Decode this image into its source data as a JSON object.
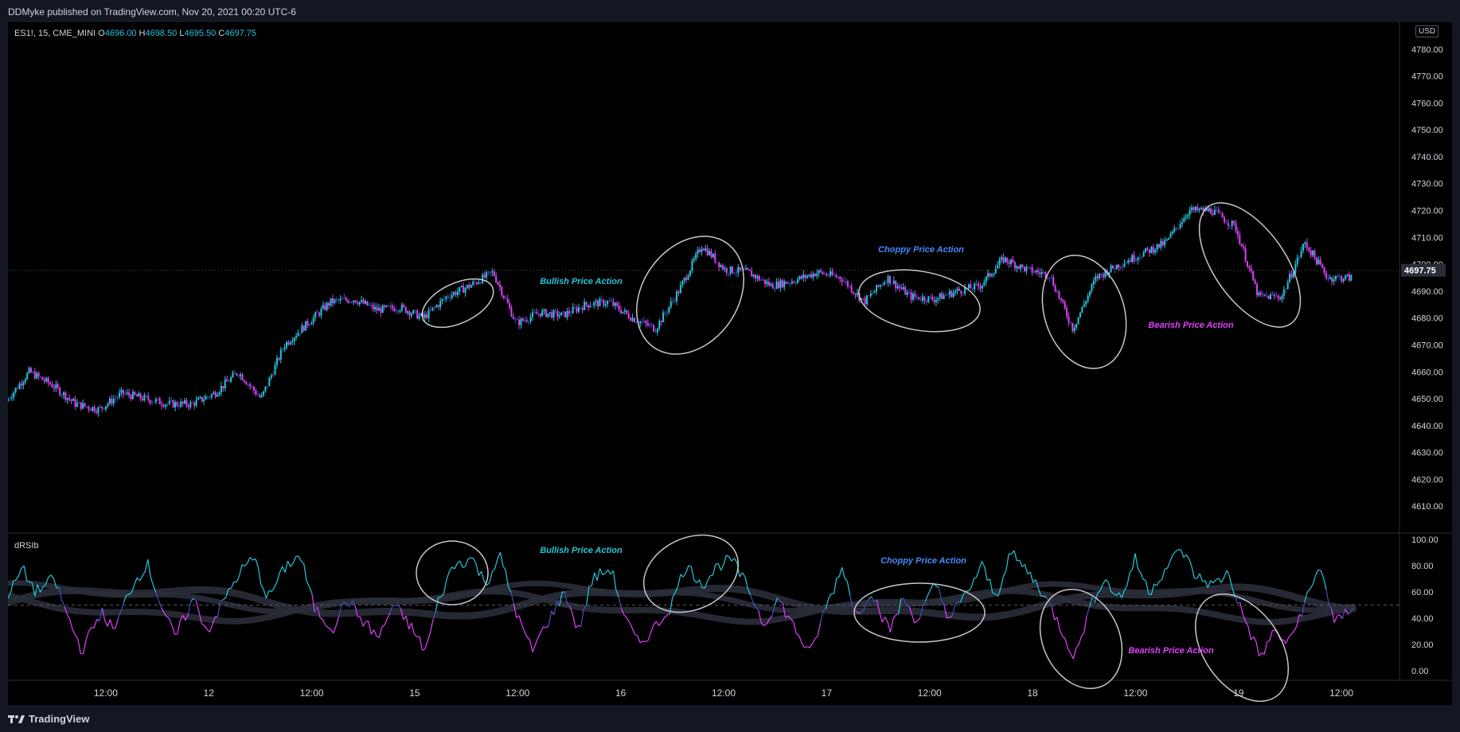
{
  "header": {
    "published_by": "DDMyke published on TradingView.com, Nov 20, 2021 00:20 UTC-6"
  },
  "legend": {
    "symbol": "ES1!, 15, CME_MINI",
    "open_label": "O",
    "open": "4696.00",
    "high_label": "H",
    "high": "4698.50",
    "low_label": "L",
    "low": "4695.50",
    "close_label": "C",
    "close": "4697.75"
  },
  "currency_badge": "USD",
  "footer": {
    "brand": "TradingView"
  },
  "colors": {
    "bull": "#26c6da",
    "bear": "#e040fb",
    "neutral": "#3f51b5",
    "band": "#2a2e39",
    "ellipse": "#c8c8c8"
  },
  "chart_data": [
    {
      "type": "candlestick",
      "pane": "price",
      "ylim": [
        4600,
        4790
      ],
      "y_ticks": [
        "4610.00",
        "4620.00",
        "4630.00",
        "4640.00",
        "4650.00",
        "4660.00",
        "4670.00",
        "4680.00",
        "4690.00",
        "4700.00",
        "4710.00",
        "4720.00",
        "4730.00",
        "4740.00",
        "4750.00",
        "4760.00",
        "4770.00",
        "4780.00"
      ],
      "last_price": "4697.75",
      "x_ticks": [
        "12:00",
        "12",
        "12:00",
        "15",
        "12:00",
        "16",
        "12:00",
        "17",
        "12:00",
        "18",
        "12:00",
        "19",
        "12:00"
      ],
      "price_path": [
        {
          "t": 0.0,
          "p": 4649
        },
        {
          "t": 0.5,
          "p": 4660
        },
        {
          "t": 1.0,
          "p": 4655
        },
        {
          "t": 1.5,
          "p": 4648
        },
        {
          "t": 2.0,
          "p": 4646
        },
        {
          "t": 2.5,
          "p": 4652
        },
        {
          "t": 3.0,
          "p": 4650
        },
        {
          "t": 3.5,
          "p": 4648
        },
        {
          "t": 4.0,
          "p": 4648
        },
        {
          "t": 4.5,
          "p": 4652
        },
        {
          "t": 5.0,
          "p": 4660
        },
        {
          "t": 5.5,
          "p": 4650
        },
        {
          "t": 6.0,
          "p": 4670
        },
        {
          "t": 6.5,
          "p": 4678
        },
        {
          "t": 7.0,
          "p": 4686
        },
        {
          "t": 7.5,
          "p": 4687
        },
        {
          "t": 8.0,
          "p": 4683
        },
        {
          "t": 8.5,
          "p": 4684
        },
        {
          "t": 9.0,
          "p": 4680
        },
        {
          "t": 9.5,
          "p": 4688
        },
        {
          "t": 10.0,
          "p": 4692
        },
        {
          "t": 10.5,
          "p": 4697
        },
        {
          "t": 11.0,
          "p": 4678
        },
        {
          "t": 11.5,
          "p": 4682
        },
        {
          "t": 12.0,
          "p": 4681
        },
        {
          "t": 12.5,
          "p": 4685
        },
        {
          "t": 13.0,
          "p": 4686
        },
        {
          "t": 13.5,
          "p": 4680
        },
        {
          "t": 14.0,
          "p": 4676
        },
        {
          "t": 14.5,
          "p": 4690
        },
        {
          "t": 15.0,
          "p": 4707
        },
        {
          "t": 15.5,
          "p": 4698
        },
        {
          "t": 16.0,
          "p": 4697
        },
        {
          "t": 16.5,
          "p": 4692
        },
        {
          "t": 17.0,
          "p": 4694
        },
        {
          "t": 17.5,
          "p": 4697
        },
        {
          "t": 18.0,
          "p": 4695
        },
        {
          "t": 18.5,
          "p": 4686
        },
        {
          "t": 19.0,
          "p": 4695
        },
        {
          "t": 19.5,
          "p": 4688
        },
        {
          "t": 20.0,
          "p": 4687
        },
        {
          "t": 20.5,
          "p": 4690
        },
        {
          "t": 21.0,
          "p": 4692
        },
        {
          "t": 21.5,
          "p": 4702
        },
        {
          "t": 22.0,
          "p": 4698
        },
        {
          "t": 22.5,
          "p": 4696
        },
        {
          "t": 23.0,
          "p": 4676
        },
        {
          "t": 23.5,
          "p": 4695
        },
        {
          "t": 24.0,
          "p": 4700
        },
        {
          "t": 24.5,
          "p": 4704
        },
        {
          "t": 25.0,
          "p": 4708
        },
        {
          "t": 25.5,
          "p": 4720
        },
        {
          "t": 26.0,
          "p": 4720
        },
        {
          "t": 26.5,
          "p": 4714
        },
        {
          "t": 27.0,
          "p": 4688
        },
        {
          "t": 27.5,
          "p": 4688
        },
        {
          "t": 28.0,
          "p": 4708
        },
        {
          "t": 28.5,
          "p": 4695
        },
        {
          "t": 29.0,
          "p": 4695
        }
      ],
      "annotations": [
        {
          "text": "Bullish Price Action",
          "color": "#26c6da"
        },
        {
          "text": "Choppy Price Action",
          "color": "#448aff"
        },
        {
          "text": "Bearish Price Action",
          "color": "#e040fb"
        }
      ]
    },
    {
      "type": "line",
      "pane": "indicator",
      "title": "dRSIb",
      "ylim": [
        0,
        100
      ],
      "y_ticks": [
        "0.00",
        "20.00",
        "40.00",
        "60.00",
        "80.00",
        "100.00"
      ],
      "midline": 50,
      "rsi_path": [
        {
          "t": 0.0,
          "v": 55
        },
        {
          "t": 0.3,
          "v": 78
        },
        {
          "t": 0.6,
          "v": 60
        },
        {
          "t": 1.0,
          "v": 70
        },
        {
          "t": 1.3,
          "v": 40
        },
        {
          "t": 1.6,
          "v": 15
        },
        {
          "t": 2.0,
          "v": 45
        },
        {
          "t": 2.3,
          "v": 30
        },
        {
          "t": 2.6,
          "v": 60
        },
        {
          "t": 3.0,
          "v": 82
        },
        {
          "t": 3.3,
          "v": 50
        },
        {
          "t": 3.6,
          "v": 25
        },
        {
          "t": 4.0,
          "v": 55
        },
        {
          "t": 4.3,
          "v": 30
        },
        {
          "t": 4.6,
          "v": 50
        },
        {
          "t": 5.0,
          "v": 75
        },
        {
          "t": 5.3,
          "v": 86
        },
        {
          "t": 5.6,
          "v": 55
        },
        {
          "t": 6.0,
          "v": 80
        },
        {
          "t": 6.3,
          "v": 88
        },
        {
          "t": 6.6,
          "v": 48
        },
        {
          "t": 7.0,
          "v": 32
        },
        {
          "t": 7.3,
          "v": 55
        },
        {
          "t": 7.6,
          "v": 40
        },
        {
          "t": 8.0,
          "v": 25
        },
        {
          "t": 8.3,
          "v": 50
        },
        {
          "t": 8.6,
          "v": 38
        },
        {
          "t": 9.0,
          "v": 15
        },
        {
          "t": 9.3,
          "v": 55
        },
        {
          "t": 9.6,
          "v": 80
        },
        {
          "t": 10.0,
          "v": 86
        },
        {
          "t": 10.3,
          "v": 66
        },
        {
          "t": 10.6,
          "v": 88
        },
        {
          "t": 11.0,
          "v": 40
        },
        {
          "t": 11.3,
          "v": 15
        },
        {
          "t": 11.6,
          "v": 35
        },
        {
          "t": 12.0,
          "v": 60
        },
        {
          "t": 12.3,
          "v": 30
        },
        {
          "t": 12.6,
          "v": 70
        },
        {
          "t": 13.0,
          "v": 78
        },
        {
          "t": 13.3,
          "v": 40
        },
        {
          "t": 13.6,
          "v": 20
        },
        {
          "t": 14.0,
          "v": 35
        },
        {
          "t": 14.3,
          "v": 50
        },
        {
          "t": 14.6,
          "v": 80
        },
        {
          "t": 15.0,
          "v": 66
        },
        {
          "t": 15.3,
          "v": 80
        },
        {
          "t": 15.6,
          "v": 85
        },
        {
          "t": 16.0,
          "v": 60
        },
        {
          "t": 16.3,
          "v": 35
        },
        {
          "t": 16.6,
          "v": 55
        },
        {
          "t": 17.0,
          "v": 30
        },
        {
          "t": 17.3,
          "v": 12
        },
        {
          "t": 17.6,
          "v": 45
        },
        {
          "t": 18.0,
          "v": 80
        },
        {
          "t": 18.3,
          "v": 40
        },
        {
          "t": 18.6,
          "v": 62
        },
        {
          "t": 19.0,
          "v": 30
        },
        {
          "t": 19.3,
          "v": 55
        },
        {
          "t": 19.6,
          "v": 38
        },
        {
          "t": 20.0,
          "v": 66
        },
        {
          "t": 20.3,
          "v": 40
        },
        {
          "t": 20.6,
          "v": 55
        },
        {
          "t": 21.0,
          "v": 80
        },
        {
          "t": 21.3,
          "v": 55
        },
        {
          "t": 21.6,
          "v": 90
        },
        {
          "t": 22.0,
          "v": 75
        },
        {
          "t": 22.3,
          "v": 60
        },
        {
          "t": 22.6,
          "v": 40
        },
        {
          "t": 23.0,
          "v": 10
        },
        {
          "t": 23.3,
          "v": 45
        },
        {
          "t": 23.6,
          "v": 70
        },
        {
          "t": 24.0,
          "v": 55
        },
        {
          "t": 24.3,
          "v": 85
        },
        {
          "t": 24.6,
          "v": 60
        },
        {
          "t": 25.0,
          "v": 80
        },
        {
          "t": 25.3,
          "v": 93
        },
        {
          "t": 25.6,
          "v": 72
        },
        {
          "t": 26.0,
          "v": 65
        },
        {
          "t": 26.3,
          "v": 75
        },
        {
          "t": 26.6,
          "v": 45
        },
        {
          "t": 27.0,
          "v": 10
        },
        {
          "t": 27.3,
          "v": 30
        },
        {
          "t": 27.6,
          "v": 20
        },
        {
          "t": 28.0,
          "v": 55
        },
        {
          "t": 28.3,
          "v": 80
        },
        {
          "t": 28.6,
          "v": 35
        },
        {
          "t": 29.0,
          "v": 50
        }
      ],
      "annotations": [
        {
          "text": "Bullish Price Action",
          "color": "#26c6da"
        },
        {
          "text": "Choppy Price Action",
          "color": "#448aff"
        },
        {
          "text": "Bearish Price Action",
          "color": "#e040fb"
        }
      ]
    }
  ]
}
